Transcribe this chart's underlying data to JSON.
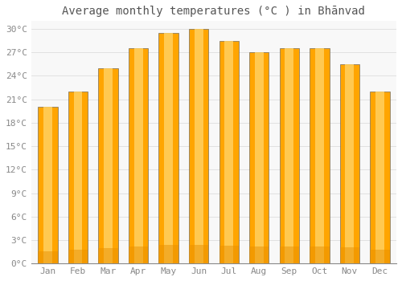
{
  "title": "Average monthly temperatures (°C ) in Bhānvad",
  "months": [
    "Jan",
    "Feb",
    "Mar",
    "Apr",
    "May",
    "Jun",
    "Jul",
    "Aug",
    "Sep",
    "Oct",
    "Nov",
    "Dec"
  ],
  "values": [
    20,
    22,
    25,
    27.5,
    29.5,
    30,
    28.5,
    27,
    27.5,
    27.5,
    25.5,
    22
  ],
  "bar_color_main": "#FFA500",
  "bar_color_light": "#FFD060",
  "bar_color_dark": "#E89000",
  "bar_edge_color": "#555555",
  "background_color": "#ffffff",
  "plot_bg_color": "#f8f8f8",
  "ylim": [
    0,
    31
  ],
  "ytick_values": [
    0,
    3,
    6,
    9,
    12,
    15,
    18,
    21,
    24,
    27,
    30
  ],
  "ytick_labels": [
    "0°C",
    "3°C",
    "6°C",
    "9°C",
    "12°C",
    "15°C",
    "18°C",
    "21°C",
    "24°C",
    "27°C",
    "30°C"
  ],
  "title_fontsize": 10,
  "tick_fontsize": 8,
  "grid_color": "#dddddd",
  "font_color": "#888888",
  "title_color": "#555555",
  "bar_width": 0.65
}
